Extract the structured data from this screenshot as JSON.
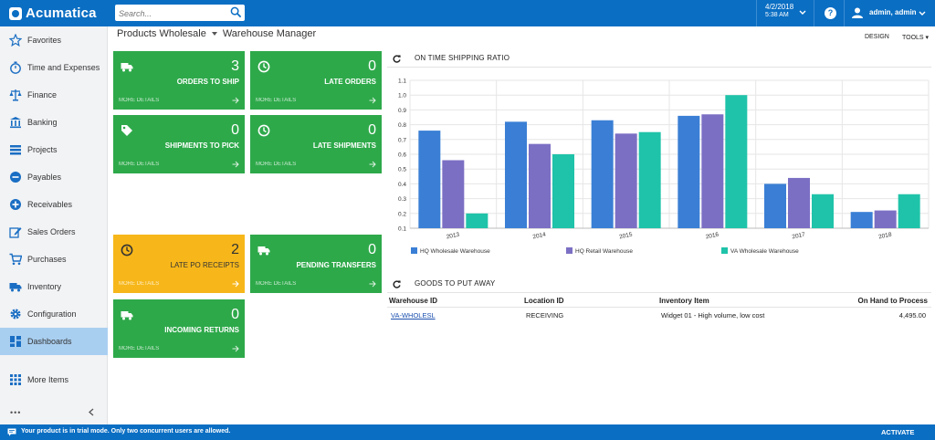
{
  "app": {
    "name": "Acumatica"
  },
  "search": {
    "placeholder": "Search..."
  },
  "datetime": {
    "date": "4/2/2018",
    "time": "5:38 AM"
  },
  "help": {
    "label": "?"
  },
  "user": {
    "name": "admin, admin"
  },
  "sidebar": {
    "items": [
      {
        "label": "Favorites",
        "icon": "star-icon"
      },
      {
        "label": "Time and Expenses",
        "icon": "stopwatch-icon"
      },
      {
        "label": "Finance",
        "icon": "scales-icon"
      },
      {
        "label": "Banking",
        "icon": "bank-icon"
      },
      {
        "label": "Projects",
        "icon": "projects-icon"
      },
      {
        "label": "Payables",
        "icon": "minus-circle-icon"
      },
      {
        "label": "Receivables",
        "icon": "plus-circle-icon"
      },
      {
        "label": "Sales Orders",
        "icon": "edit-icon"
      },
      {
        "label": "Purchases",
        "icon": "cart-icon"
      },
      {
        "label": "Inventory",
        "icon": "truck-icon"
      },
      {
        "label": "Configuration",
        "icon": "gear-icon"
      },
      {
        "label": "Dashboards",
        "icon": "dashboard-icon"
      },
      {
        "label": "More Items",
        "icon": "grid-icon"
      }
    ],
    "active_index": 11,
    "dots": "•••"
  },
  "breadcrumb": {
    "company": "Products Wholesale",
    "page": "Warehouse Manager"
  },
  "toolbar": {
    "design": "DESIGN",
    "tools": "TOOLS ▾"
  },
  "tiles": [
    {
      "value": "3",
      "label": "Orders to Ship",
      "more": "More Details",
      "icon": "truck-icon",
      "color": "#2ea94a"
    },
    {
      "value": "0",
      "label": "Late Orders",
      "more": "More Details",
      "icon": "clock-icon",
      "color": "#2ea94a"
    },
    {
      "value": "0",
      "label": "Shipments to Pick",
      "more": "More Details",
      "icon": "tag-icon",
      "color": "#2ea94a"
    },
    {
      "value": "0",
      "label": "Late Shipments",
      "more": "More Details",
      "icon": "clock-icon",
      "color": "#2ea94a"
    },
    {
      "value": "2",
      "label": "Late PO Receipts",
      "more": "More Details",
      "icon": "clock-icon",
      "color": "#f7b71a"
    },
    {
      "value": "0",
      "label": "Pending Transfers",
      "more": "More Details",
      "icon": "truck-icon",
      "color": "#2ea94a"
    },
    {
      "value": "0",
      "label": "Incoming Returns",
      "more": "More Details",
      "icon": "truck-icon",
      "color": "#2ea94a"
    }
  ],
  "chart_section": {
    "title": "ON TIME SHIPPING RATIO"
  },
  "chart_data": {
    "type": "bar",
    "categories": [
      "2013",
      "2014",
      "2015",
      "2016",
      "2017",
      "2018"
    ],
    "series": [
      {
        "name": "HQ Wholesale Warehouse",
        "color": "#3a7fd5",
        "values": [
          0.76,
          0.82,
          0.83,
          0.86,
          0.4,
          0.21
        ]
      },
      {
        "name": "HQ Retail Warehouse",
        "color": "#7b6fc4",
        "values": [
          0.56,
          0.67,
          0.74,
          0.87,
          0.44,
          0.22
        ]
      },
      {
        "name": "VA Wholesale Warehouse",
        "color": "#1fc3a9",
        "values": [
          0.2,
          0.6,
          0.75,
          1.0,
          0.33,
          0.33
        ]
      }
    ],
    "yticks": [
      "0.1",
      "0.2",
      "0.3",
      "0.4",
      "0.5",
      "0.6",
      "0.7",
      "0.8",
      "0.9",
      "1.0",
      "1.1"
    ],
    "ylim": [
      0.1,
      1.1
    ],
    "grid": true,
    "legend": "bottom"
  },
  "table_section": {
    "title": "GOODS TO PUT AWAY"
  },
  "table": {
    "columns": [
      "Warehouse ID",
      "Location ID",
      "Inventory Item",
      "On Hand to Process"
    ],
    "rows": [
      [
        "VA-WHOLESL",
        "RECEIVING",
        "Widget 01 - High volume, low cost",
        "4,495.00"
      ]
    ]
  },
  "footer": {
    "message": "Your product is in trial mode. Only two concurrent users are allowed.",
    "action": "ACTIVATE"
  },
  "colors": {
    "brand": "#0a6ec3",
    "tile_green": "#2ea94a",
    "tile_yellow": "#f7b71a",
    "active_nav": "#a9cff0"
  }
}
